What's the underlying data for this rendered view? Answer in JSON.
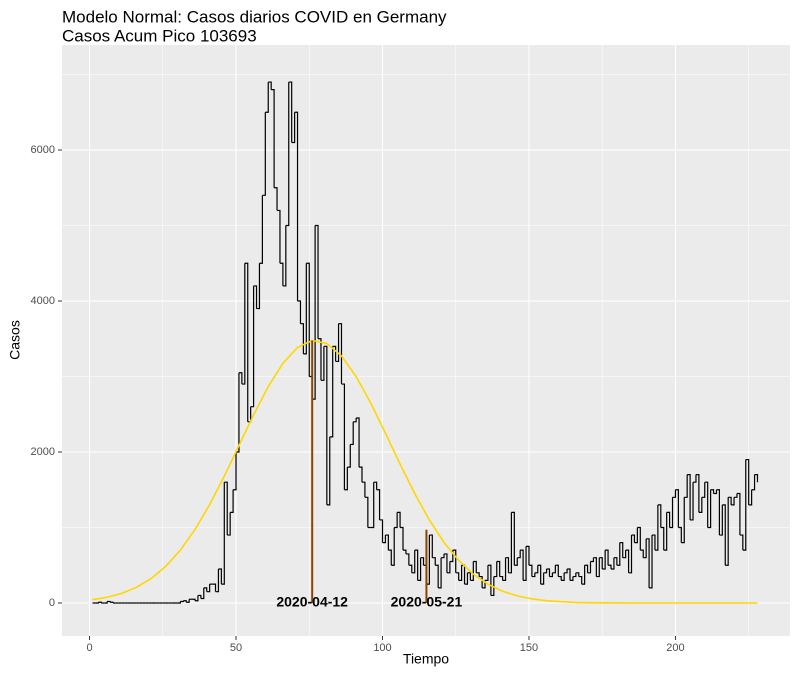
{
  "chart_data": {
    "type": "step",
    "title": "Modelo Normal: Casos diarios COVID en Germany",
    "subtitle": "Casos Acum Pico 103693",
    "x_label": "Tiempo",
    "y_label": "Casos",
    "xlim": [
      -9.4,
      239.1
    ],
    "ylim": [
      -437,
      7391
    ],
    "xticks": [
      0,
      50,
      100,
      150,
      200
    ],
    "yticks": [
      0,
      2000,
      4000,
      6000
    ],
    "grid": true,
    "minor_grid": true,
    "steps": {
      "color": "#000000",
      "x": [
        1,
        2,
        3,
        4,
        5,
        6,
        7,
        8,
        9,
        10,
        11,
        12,
        13,
        14,
        15,
        16,
        17,
        18,
        19,
        20,
        21,
        22,
        23,
        24,
        25,
        26,
        27,
        28,
        29,
        30,
        31,
        32,
        33,
        34,
        35,
        36,
        37,
        38,
        39,
        40,
        41,
        42,
        43,
        44,
        45,
        46,
        47,
        48,
        49,
        50,
        51,
        52,
        53,
        54,
        55,
        56,
        57,
        58,
        59,
        60,
        61,
        62,
        63,
        64,
        65,
        66,
        67,
        68,
        69,
        70,
        71,
        72,
        73,
        74,
        75,
        76,
        77,
        78,
        79,
        80,
        81,
        82,
        83,
        84,
        85,
        86,
        87,
        88,
        89,
        90,
        91,
        92,
        93,
        94,
        95,
        96,
        97,
        98,
        99,
        100,
        101,
        102,
        103,
        104,
        105,
        106,
        107,
        108,
        109,
        110,
        111,
        112,
        113,
        114,
        115,
        116,
        117,
        118,
        119,
        120,
        121,
        122,
        123,
        124,
        125,
        126,
        127,
        128,
        129,
        130,
        131,
        132,
        133,
        134,
        135,
        136,
        137,
        138,
        139,
        140,
        141,
        142,
        143,
        144,
        145,
        146,
        147,
        148,
        149,
        150,
        151,
        152,
        153,
        154,
        155,
        156,
        157,
        158,
        159,
        160,
        161,
        162,
        163,
        164,
        165,
        166,
        167,
        168,
        169,
        170,
        171,
        172,
        173,
        174,
        175,
        176,
        177,
        178,
        179,
        180,
        181,
        182,
        183,
        184,
        185,
        186,
        187,
        188,
        189,
        190,
        191,
        192,
        193,
        194,
        195,
        196,
        197,
        198,
        199,
        200,
        201,
        202,
        203,
        204,
        205,
        206,
        207,
        208,
        209,
        210,
        211,
        212,
        213,
        214,
        215,
        216,
        217,
        218,
        219,
        220,
        221,
        222,
        223,
        224,
        225,
        226,
        227,
        228
      ],
      "values": [
        0,
        0,
        10,
        0,
        0,
        20,
        10,
        0,
        0,
        0,
        0,
        0,
        0,
        0,
        0,
        0,
        0,
        0,
        0,
        0,
        0,
        0,
        0,
        0,
        0,
        0,
        0,
        0,
        0,
        0,
        20,
        30,
        10,
        50,
        50,
        30,
        100,
        60,
        200,
        150,
        250,
        250,
        150,
        450,
        250,
        1600,
        900,
        1200,
        1500,
        2000,
        3050,
        2900,
        4500,
        2400,
        2600,
        4200,
        3900,
        4500,
        5400,
        6500,
        6900,
        6800,
        5500,
        5200,
        4500,
        4200,
        5000,
        6900,
        6100,
        6500,
        4000,
        3700,
        3300,
        4500,
        3000,
        2700,
        5000,
        3500,
        2950,
        3400,
        1300,
        2200,
        3400,
        3200,
        3700,
        2900,
        1500,
        1800,
        2100,
        2400,
        2450,
        1800,
        1600,
        1400,
        1000,
        1000,
        1600,
        1500,
        1100,
        800,
        900,
        700,
        500,
        1000,
        1200,
        1000,
        700,
        650,
        500,
        400,
        700,
        300,
        600,
        500,
        250,
        900,
        600,
        500,
        200,
        600,
        650,
        400,
        550,
        700,
        400,
        300,
        500,
        250,
        400,
        300,
        550,
        400,
        350,
        200,
        300,
        500,
        100,
        350,
        550,
        350,
        300,
        600,
        400,
        1200,
        500,
        600,
        700,
        300,
        750,
        500,
        350,
        400,
        500,
        250,
        400,
        450,
        350,
        400,
        500,
        350,
        300,
        400,
        450,
        300,
        350,
        400,
        350,
        250,
        500,
        400,
        550,
        600,
        350,
        600,
        450,
        700,
        500,
        450,
        600,
        500,
        800,
        600,
        700,
        400,
        900,
        800,
        1000,
        700,
        600,
        850,
        200,
        900,
        700,
        1300,
        1000,
        700,
        1200,
        1000,
        1400,
        1500,
        1000,
        800,
        1400,
        1700,
        1100,
        1600,
        1700,
        1200,
        1400,
        1600,
        1000,
        1500,
        1450,
        1500,
        900,
        1300,
        500,
        1400,
        1300,
        1400,
        1450,
        900,
        700,
        1900,
        1300,
        1500,
        1700,
        1600
      ]
    },
    "curve": {
      "color": "#FFD700",
      "x": [
        1,
        6,
        11,
        16,
        21,
        26,
        31,
        36,
        41,
        46,
        51,
        56,
        61,
        66,
        71,
        76,
        81,
        86,
        91,
        96,
        101,
        106,
        111,
        116,
        121,
        126,
        131,
        136,
        141,
        146,
        151,
        156,
        161,
        166,
        171,
        176,
        186,
        228
      ],
      "values": [
        44,
        76,
        128,
        208,
        323,
        485,
        700,
        974,
        1304,
        1680,
        2086,
        2492,
        2866,
        3175,
        3386,
        3477,
        3438,
        3273,
        3000,
        2647,
        2249,
        1840,
        1450,
        1100,
        803,
        565,
        382,
        249,
        156,
        94,
        55,
        31,
        17,
        8,
        4,
        2,
        0,
        0
      ]
    },
    "marker_color": "#8B4500",
    "markers": [
      {
        "x": 76,
        "y": 3477,
        "label": "2020-04-12"
      },
      {
        "x": 115,
        "y": 970,
        "label": "2020-05-21"
      }
    ]
  }
}
